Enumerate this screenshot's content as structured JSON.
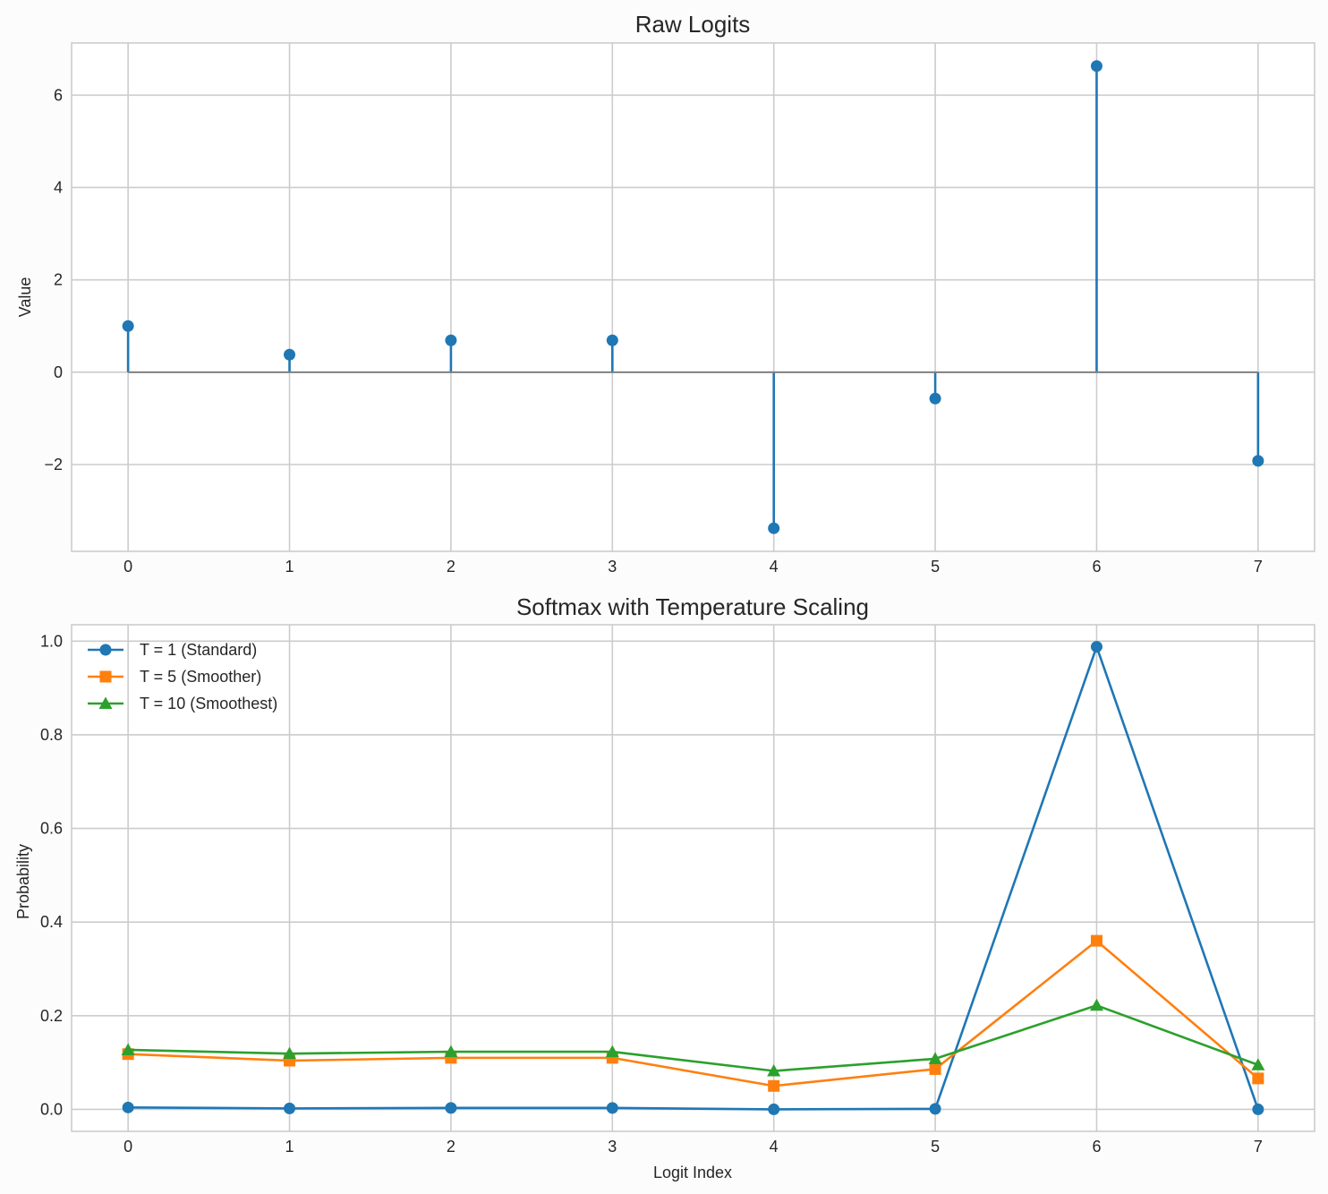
{
  "chart_data": [
    {
      "type": "stem",
      "title": "Raw Logits",
      "xlabel": "",
      "ylabel": "Value",
      "x": [
        0,
        1,
        2,
        3,
        4,
        5,
        6,
        7
      ],
      "values": [
        1.0,
        0.38,
        0.69,
        0.69,
        -3.38,
        -0.57,
        6.63,
        -1.92
      ],
      "xlim": [
        -0.35,
        7.35
      ],
      "ylim": [
        -3.88,
        7.13
      ],
      "xticks": [
        "0",
        "1",
        "2",
        "3",
        "4",
        "5",
        "6",
        "7"
      ],
      "yticks": [
        -2,
        0,
        2,
        4,
        6
      ],
      "ytick_labels": [
        "−2",
        "0",
        "2",
        "4",
        "6"
      ],
      "grid": true,
      "colors": {
        "stem": "#1f77b4",
        "baseline": "#808080"
      }
    },
    {
      "type": "line",
      "title": "Softmax with Temperature Scaling",
      "xlabel": "Logit Index",
      "ylabel": "Probability",
      "x": [
        0,
        1,
        2,
        3,
        4,
        5,
        6,
        7
      ],
      "xlim": [
        -0.35,
        7.35
      ],
      "ylim": [
        -0.047,
        1.035
      ],
      "xticks": [
        "0",
        "1",
        "2",
        "3",
        "4",
        "5",
        "6",
        "7"
      ],
      "yticks": [
        "0.0",
        "0.2",
        "0.4",
        "0.6",
        "0.8",
        "1.0"
      ],
      "grid": true,
      "legend_position": "top-left",
      "series": [
        {
          "name": "T = 1 (Standard)",
          "color": "#1f77b4",
          "marker": "circle",
          "values": [
            0.004,
            0.002,
            0.003,
            0.003,
            0.0,
            0.001,
            0.988,
            0.0
          ]
        },
        {
          "name": "T = 5 (Smoother)",
          "color": "#ff7f0e",
          "marker": "square",
          "values": [
            0.118,
            0.104,
            0.11,
            0.11,
            0.05,
            0.086,
            0.36,
            0.066
          ]
        },
        {
          "name": "T = 10 (Smoothest)",
          "color": "#2ca02c",
          "marker": "triangle",
          "values": [
            0.127,
            0.119,
            0.123,
            0.123,
            0.082,
            0.108,
            0.222,
            0.095
          ]
        }
      ]
    }
  ]
}
